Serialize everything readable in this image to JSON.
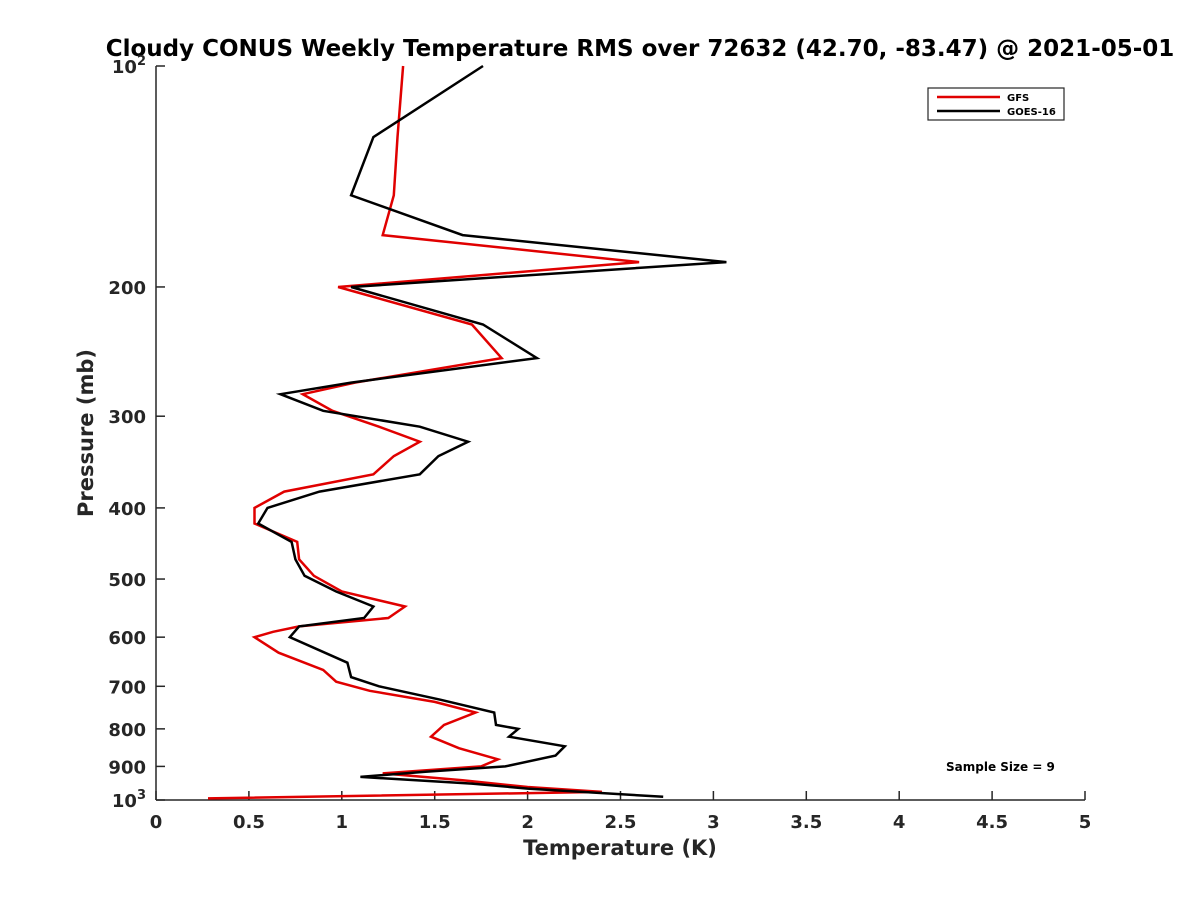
{
  "chart_data": {
    "type": "line",
    "title": "Cloudy CONUS Weekly Temperature RMS over 72632 (42.70, -83.47) @ 2021-05-01",
    "xlabel": "Temperature (K)",
    "ylabel": "Pressure (mb)",
    "xlim": [
      0,
      5
    ],
    "ylim": [
      100,
      1000
    ],
    "y_scale": "log",
    "y_reversed": true,
    "grid": false,
    "legend_position": "top-right",
    "x_ticks": [
      0,
      0.5,
      1,
      1.5,
      2,
      2.5,
      3,
      3.5,
      4,
      4.5,
      5
    ],
    "x_tick_labels": [
      "0",
      "0.5",
      "1",
      "1.5",
      "2",
      "2.5",
      "3",
      "3.5",
      "4",
      "4.5",
      "5"
    ],
    "y_ticks": [
      {
        "value": 100,
        "base": "10",
        "exp": "2"
      },
      {
        "value": 200,
        "label": "200"
      },
      {
        "value": 300,
        "label": "300"
      },
      {
        "value": 400,
        "label": "400"
      },
      {
        "value": 500,
        "label": "500"
      },
      {
        "value": 600,
        "label": "600"
      },
      {
        "value": 700,
        "label": "700"
      },
      {
        "value": 800,
        "label": "800"
      },
      {
        "value": 900,
        "label": "900"
      },
      {
        "value": 1000,
        "base": "10",
        "exp": "3"
      }
    ],
    "series": [
      {
        "name": "GFS",
        "color": "#e00000",
        "points": [
          [
            1.33,
            100
          ],
          [
            1.3,
            125
          ],
          [
            1.28,
            150
          ],
          [
            1.22,
            170
          ],
          [
            2.6,
            185
          ],
          [
            0.98,
            200
          ],
          [
            1.7,
            225
          ],
          [
            1.86,
            250
          ],
          [
            1.07,
            270
          ],
          [
            0.79,
            280
          ],
          [
            0.95,
            295
          ],
          [
            1.2,
            310
          ],
          [
            1.42,
            325
          ],
          [
            1.28,
            340
          ],
          [
            1.17,
            360
          ],
          [
            0.69,
            380
          ],
          [
            0.53,
            400
          ],
          [
            0.53,
            420
          ],
          [
            0.76,
            445
          ],
          [
            0.77,
            470
          ],
          [
            0.85,
            495
          ],
          [
            1.0,
            520
          ],
          [
            1.34,
            545
          ],
          [
            1.25,
            565
          ],
          [
            0.77,
            580
          ],
          [
            0.63,
            590
          ],
          [
            0.53,
            600
          ],
          [
            0.66,
            630
          ],
          [
            0.9,
            665
          ],
          [
            0.97,
            690
          ],
          [
            1.15,
            710
          ],
          [
            1.5,
            735
          ],
          [
            1.72,
            760
          ],
          [
            1.55,
            790
          ],
          [
            1.48,
            820
          ],
          [
            1.63,
            850
          ],
          [
            1.84,
            880
          ],
          [
            1.75,
            900
          ],
          [
            1.22,
            920
          ],
          [
            1.65,
            940
          ],
          [
            2.0,
            960
          ],
          [
            2.4,
            975
          ],
          [
            0.28,
            995
          ]
        ]
      },
      {
        "name": "GOES-16",
        "color": "#000000",
        "points": [
          [
            1.76,
            100
          ],
          [
            1.17,
            125
          ],
          [
            1.05,
            150
          ],
          [
            1.65,
            170
          ],
          [
            3.07,
            185
          ],
          [
            1.05,
            200
          ],
          [
            1.76,
            225
          ],
          [
            2.05,
            250
          ],
          [
            1.05,
            270
          ],
          [
            0.67,
            280
          ],
          [
            0.9,
            295
          ],
          [
            1.42,
            310
          ],
          [
            1.68,
            325
          ],
          [
            1.52,
            340
          ],
          [
            1.42,
            360
          ],
          [
            0.88,
            380
          ],
          [
            0.6,
            400
          ],
          [
            0.55,
            420
          ],
          [
            0.73,
            445
          ],
          [
            0.75,
            470
          ],
          [
            0.8,
            495
          ],
          [
            0.97,
            520
          ],
          [
            1.17,
            545
          ],
          [
            1.12,
            565
          ],
          [
            0.77,
            580
          ],
          [
            0.72,
            600
          ],
          [
            1.03,
            650
          ],
          [
            1.05,
            680
          ],
          [
            1.2,
            700
          ],
          [
            1.53,
            730
          ],
          [
            1.82,
            760
          ],
          [
            1.83,
            790
          ],
          [
            1.95,
            800
          ],
          [
            1.9,
            820
          ],
          [
            2.2,
            845
          ],
          [
            2.15,
            870
          ],
          [
            1.88,
            900
          ],
          [
            1.45,
            915
          ],
          [
            1.1,
            930
          ],
          [
            1.7,
            950
          ],
          [
            2.0,
            965
          ],
          [
            2.73,
            990
          ]
        ]
      }
    ],
    "annotation": "Sample Size = 9"
  }
}
